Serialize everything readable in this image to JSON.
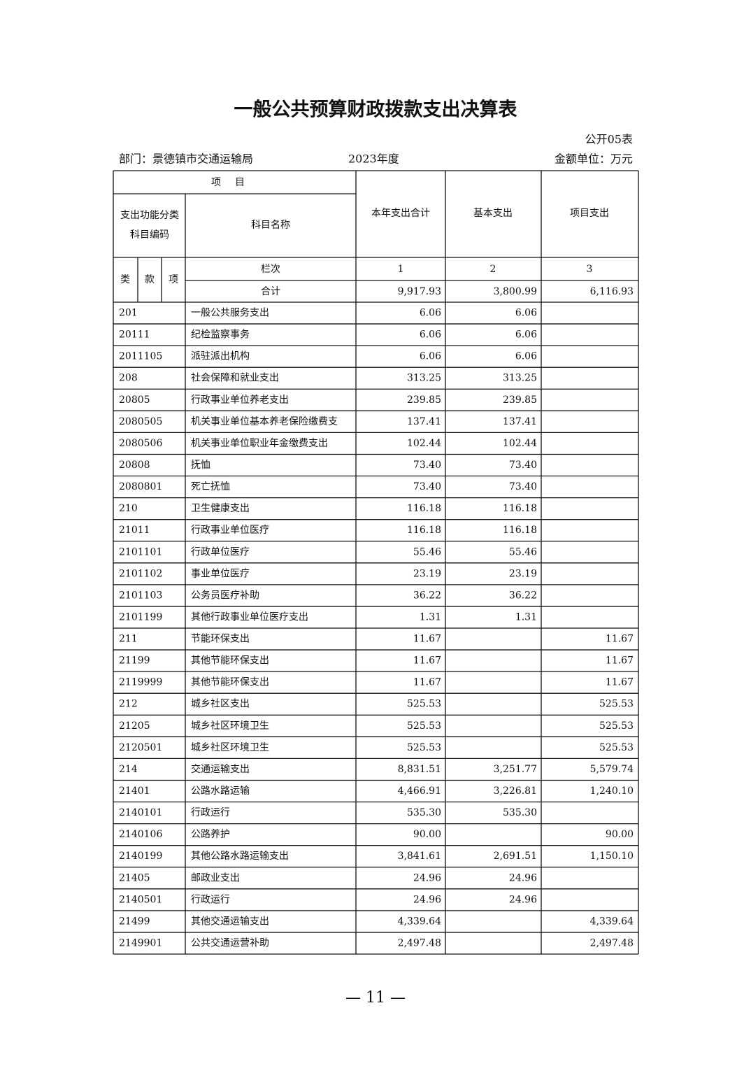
{
  "header": {
    "title": "一般公共预算财政拨款支出决算表",
    "table_no": "公开05表",
    "department": "部门：景德镇市交通运输局",
    "year": "2023年度",
    "unit": "金额单位：万元"
  },
  "table": {
    "columns": {
      "item": "项目",
      "code": [
        "支出功能分类",
        "科目编码"
      ],
      "name": "科目名称",
      "total": "本年支出合计",
      "basic": "基本支出",
      "project": "项目支出",
      "level1": "类",
      "level2": "款",
      "level3": "项",
      "column_no": "栏次",
      "no1": "1",
      "no2": "2",
      "no3": "3"
    },
    "sum": {
      "label": "合计",
      "total": "9,917.93",
      "basic": "3,800.99",
      "project": "6,116.93"
    },
    "rows": [
      [
        "201",
        "一般公共服务支出",
        "6.06",
        "6.06",
        null
      ],
      [
        "20111",
        "纪检监察事务",
        "6.06",
        "6.06",
        null
      ],
      [
        "2011105",
        "派驻派出机构",
        "6.06",
        "6.06",
        null
      ],
      [
        "208",
        "社会保障和就业支出",
        "313.25",
        "313.25",
        null
      ],
      [
        "20805",
        "行政事业单位养老支出",
        "239.85",
        "239.85",
        null
      ],
      [
        "2080505",
        "机关事业单位基本养老保险缴费支",
        "137.41",
        "137.41",
        null
      ],
      [
        "2080506",
        "机关事业单位职业年金缴费支出",
        "102.44",
        "102.44",
        null
      ],
      [
        "20808",
        "抚恤",
        "73.40",
        "73.40",
        null
      ],
      [
        "2080801",
        "死亡抚恤",
        "73.40",
        "73.40",
        null
      ],
      [
        "210",
        "卫生健康支出",
        "116.18",
        "116.18",
        null
      ],
      [
        "21011",
        "行政事业单位医疗",
        "116.18",
        "116.18",
        null
      ],
      [
        "2101101",
        "行政单位医疗",
        "55.46",
        "55.46",
        null
      ],
      [
        "2101102",
        "事业单位医疗",
        "23.19",
        "23.19",
        null
      ],
      [
        "2101103",
        "公务员医疗补助",
        "36.22",
        "36.22",
        null
      ],
      [
        "2101199",
        "其他行政事业单位医疗支出",
        "1.31",
        "1.31",
        null
      ],
      [
        "211",
        "节能环保支出",
        "11.67",
        null,
        "11.67"
      ],
      [
        "21199",
        "其他节能环保支出",
        "11.67",
        null,
        "11.67"
      ],
      [
        "2119999",
        "其他节能环保支出",
        "11.67",
        null,
        "11.67"
      ],
      [
        "212",
        "城乡社区支出",
        "525.53",
        null,
        "525.53"
      ],
      [
        "21205",
        "城乡社区环境卫生",
        "525.53",
        null,
        "525.53"
      ],
      [
        "2120501",
        "城乡社区环境卫生",
        "525.53",
        null,
        "525.53"
      ],
      [
        "214",
        "交通运输支出",
        "8,831.51",
        "3,251.77",
        "5,579.74"
      ],
      [
        "21401",
        "公路水路运输",
        "4,466.91",
        "3,226.81",
        "1,240.10"
      ],
      [
        "2140101",
        "行政运行",
        "535.30",
        "535.30",
        null
      ],
      [
        "2140106",
        "公路养护",
        "90.00",
        null,
        "90.00"
      ],
      [
        "2140199",
        "其他公路水路运输支出",
        "3,841.61",
        "2,691.51",
        "1,150.10"
      ],
      [
        "21405",
        "邮政业支出",
        "24.96",
        "24.96",
        null
      ],
      [
        "2140501",
        "行政运行",
        "24.96",
        "24.96",
        null
      ],
      [
        "21499",
        "其他交通运输支出",
        "4,339.64",
        null,
        "4,339.64"
      ],
      [
        "2149901",
        "公共交通运营补助",
        "2,497.48",
        null,
        "2,497.48"
      ]
    ]
  },
  "footer": {
    "page": "— 11 —"
  }
}
